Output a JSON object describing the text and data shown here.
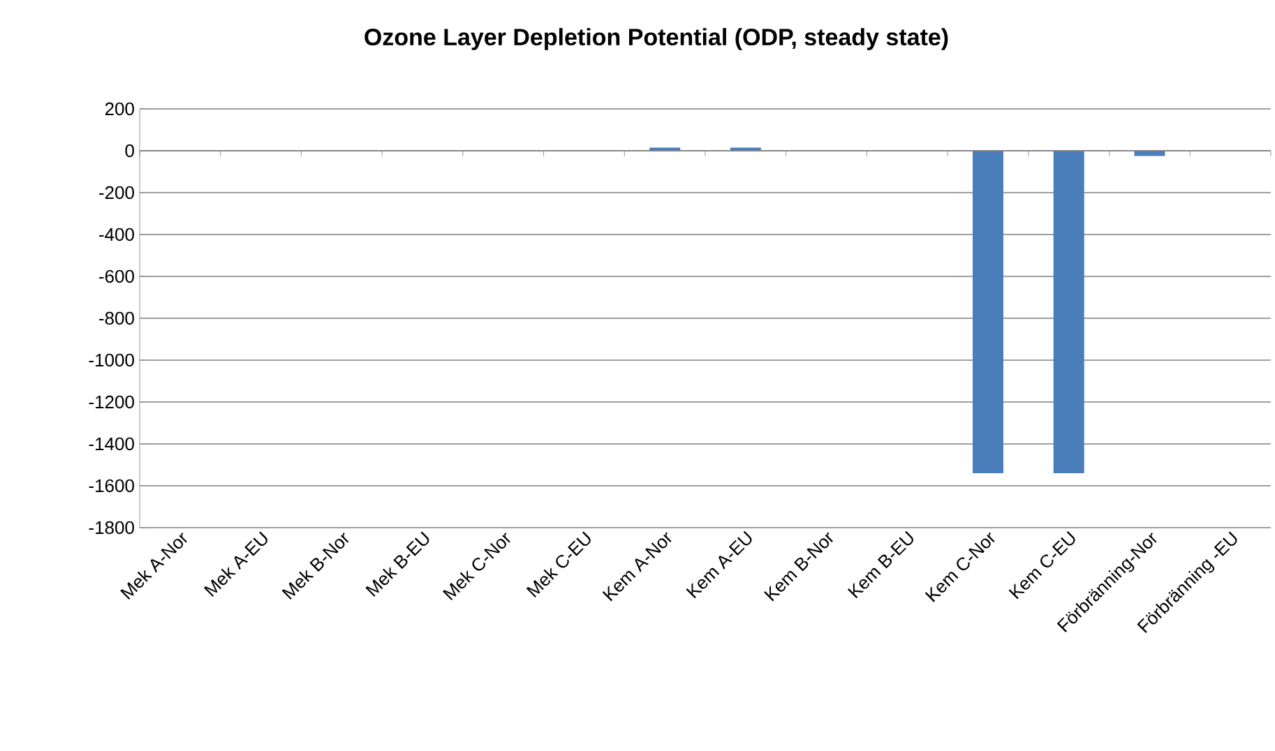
{
  "chart_data": {
    "type": "bar",
    "title": "Ozone Layer Depletion Potential (ODP, steady state)",
    "categories": [
      "Mek A-Nor",
      "Mek A-EU",
      "Mek B-Nor",
      "Mek B-EU",
      "Mek C-Nor",
      "Mek C-EU",
      "Kem A-Nor",
      "Kem A-EU",
      "Kem B-Nor",
      "Kem B-EU",
      "Kem C-Nor",
      "Kem C-EU",
      "Förbränning-Nor",
      "Förbränning -EU"
    ],
    "values": [
      0,
      0,
      0,
      0,
      0,
      0,
      15,
      15,
      0,
      0,
      -1540,
      -1540,
      -25,
      0
    ],
    "color": "#4a7ebb",
    "ylim": [
      -1800,
      200
    ],
    "yticks": [
      -1800,
      -1600,
      -1400,
      -1200,
      -1000,
      -800,
      -600,
      -400,
      -200,
      0,
      200
    ],
    "grid": "y"
  }
}
